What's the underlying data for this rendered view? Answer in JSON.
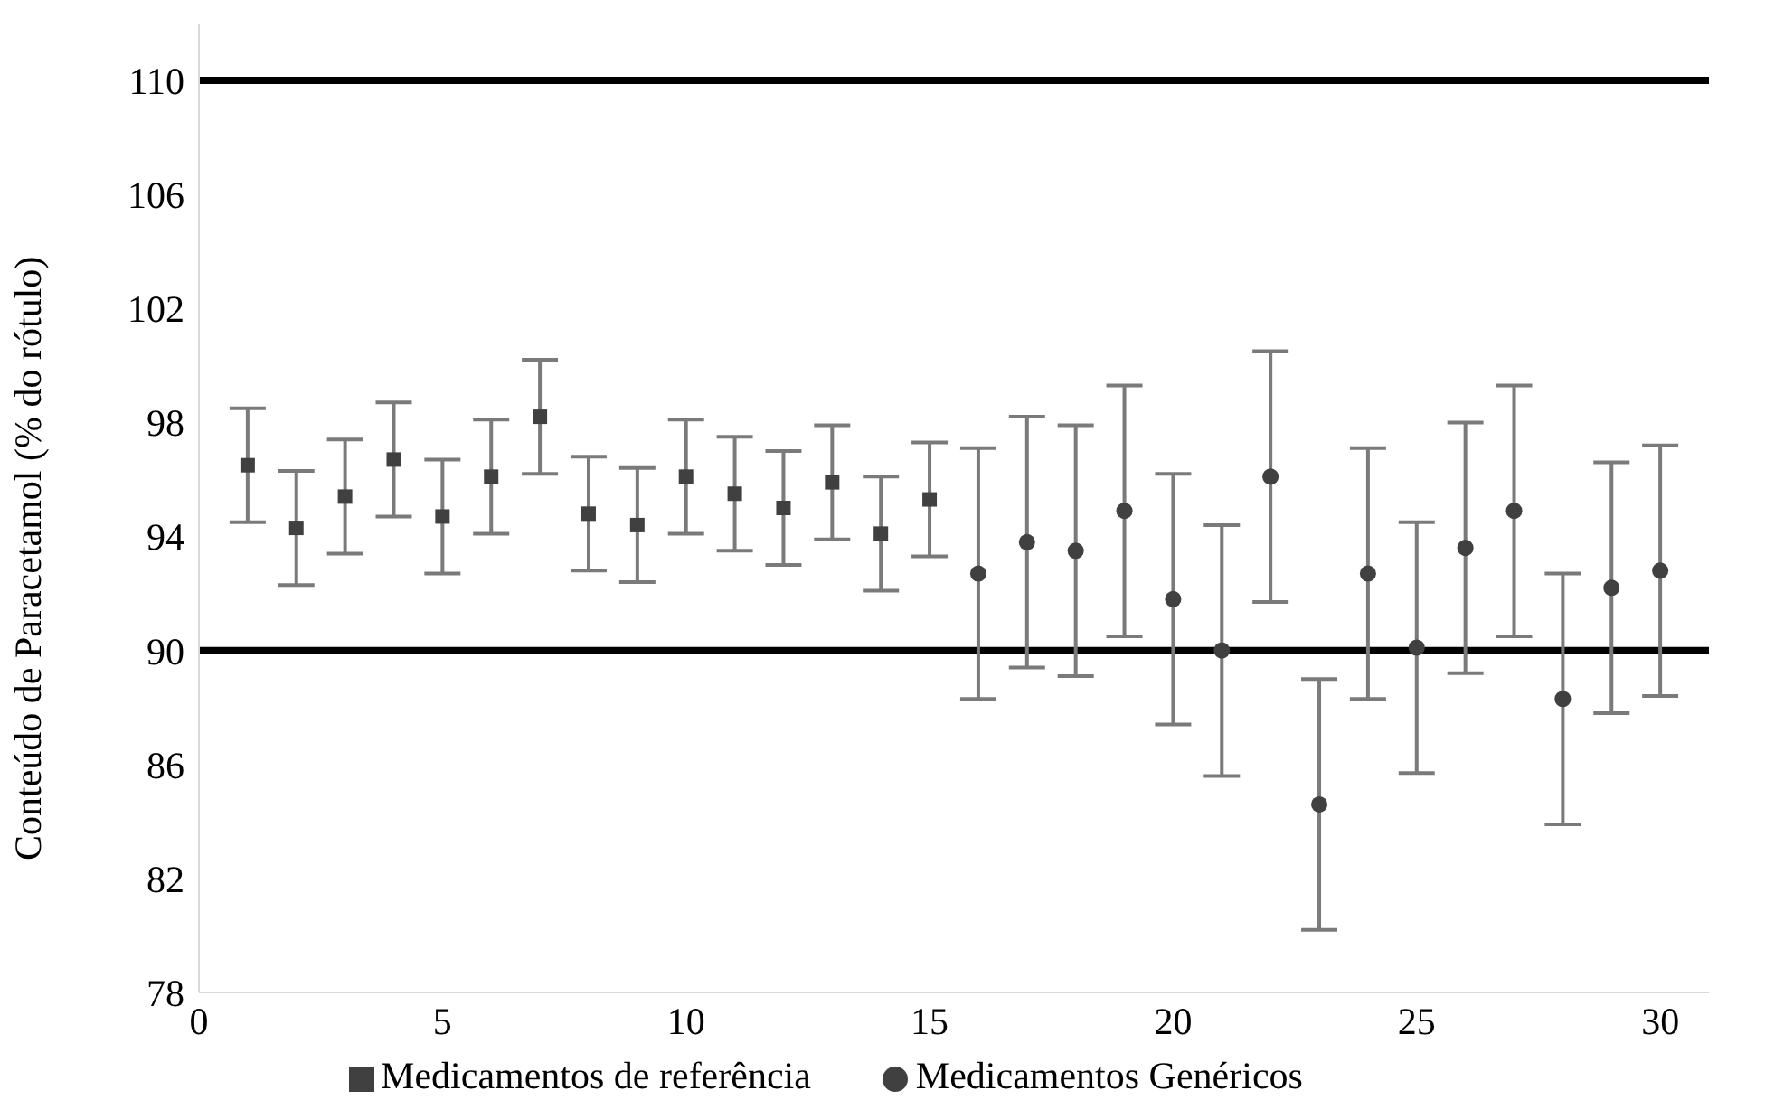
{
  "chart_data": {
    "type": "scatter",
    "ylabel": "Conteúdo de Paracetamol (% do rótulo)",
    "xlim": [
      0,
      31
    ],
    "xticks": [
      0,
      5,
      10,
      15,
      20,
      25,
      30
    ],
    "ylim": [
      78,
      112
    ],
    "yticks": [
      78,
      82,
      86,
      90,
      94,
      98,
      102,
      106,
      110
    ],
    "grid": false,
    "legend": "bottom",
    "series": [
      {
        "name": "Medicamentos de referência",
        "color": "#404040",
        "marker": "square",
        "x": [
          1,
          2,
          3,
          4,
          5,
          6,
          7,
          8,
          9,
          10,
          11,
          12,
          13,
          14,
          15
        ],
        "values": [
          96.5,
          94.3,
          95.4,
          96.7,
          94.7,
          96.1,
          98.2,
          94.8,
          94.4,
          96.1,
          95.5,
          95.0,
          95.9,
          94.1,
          95.3
        ],
        "errors": [
          2,
          2,
          2,
          2,
          2,
          2,
          2,
          2,
          2,
          2,
          2,
          2,
          2,
          2,
          2
        ]
      },
      {
        "name": "Medicamentos Genéricos",
        "color": "#404040",
        "marker": "circle",
        "x": [
          16,
          17,
          18,
          19,
          20,
          21,
          22,
          23,
          24,
          25,
          26,
          27,
          28,
          29,
          30
        ],
        "values": [
          92.7,
          93.8,
          93.5,
          94.9,
          91.8,
          90.0,
          96.1,
          84.6,
          92.7,
          90.1,
          93.6,
          94.9,
          88.3,
          92.2,
          92.8
        ],
        "errors": [
          4.4,
          4.4,
          4.4,
          4.4,
          4.4,
          4.4,
          4.4,
          4.4,
          4.4,
          4.4,
          4.4,
          4.4,
          4.4,
          4.4,
          4.4
        ]
      }
    ],
    "ref_lines": [
      {
        "axis": "y",
        "value": 110,
        "color": "#000000"
      },
      {
        "axis": "y",
        "value": 90,
        "color": "#000000"
      }
    ]
  }
}
